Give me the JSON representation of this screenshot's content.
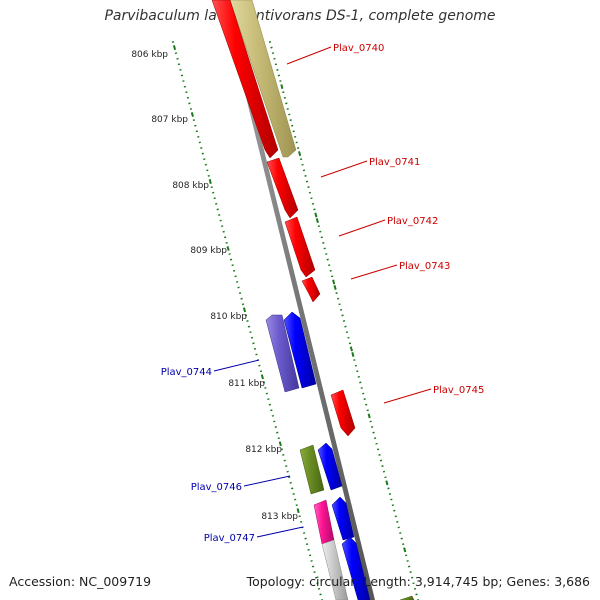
{
  "title": "Parvibaculum lavamentivorans DS-1, complete genome",
  "footer": {
    "accession": "Accession: NC_009719",
    "summary": "Topology: circular; Length: 3,914,745 bp; Genes: 3,686"
  },
  "colors": {
    "backbone": "#888888",
    "tick": "#1a7a1a",
    "red_label": "#cc0000",
    "blue_label": "#0000aa"
  },
  "ticks": [
    "806 kbp",
    "807 kbp",
    "808 kbp",
    "809 kbp",
    "810 kbp",
    "811 kbp",
    "812 kbp",
    "813 kbp"
  ],
  "genes": [
    {
      "name": "Plav_0740",
      "label_color": "red"
    },
    {
      "name": "Plav_0741",
      "label_color": "red"
    },
    {
      "name": "Plav_0742",
      "label_color": "red"
    },
    {
      "name": "Plav_0743",
      "label_color": "red"
    },
    {
      "name": "Plav_0744",
      "label_color": "blue"
    },
    {
      "name": "Plav_0745",
      "label_color": "red"
    },
    {
      "name": "Plav_0746",
      "label_color": "blue"
    },
    {
      "name": "Plav_0747",
      "label_color": "blue"
    }
  ]
}
